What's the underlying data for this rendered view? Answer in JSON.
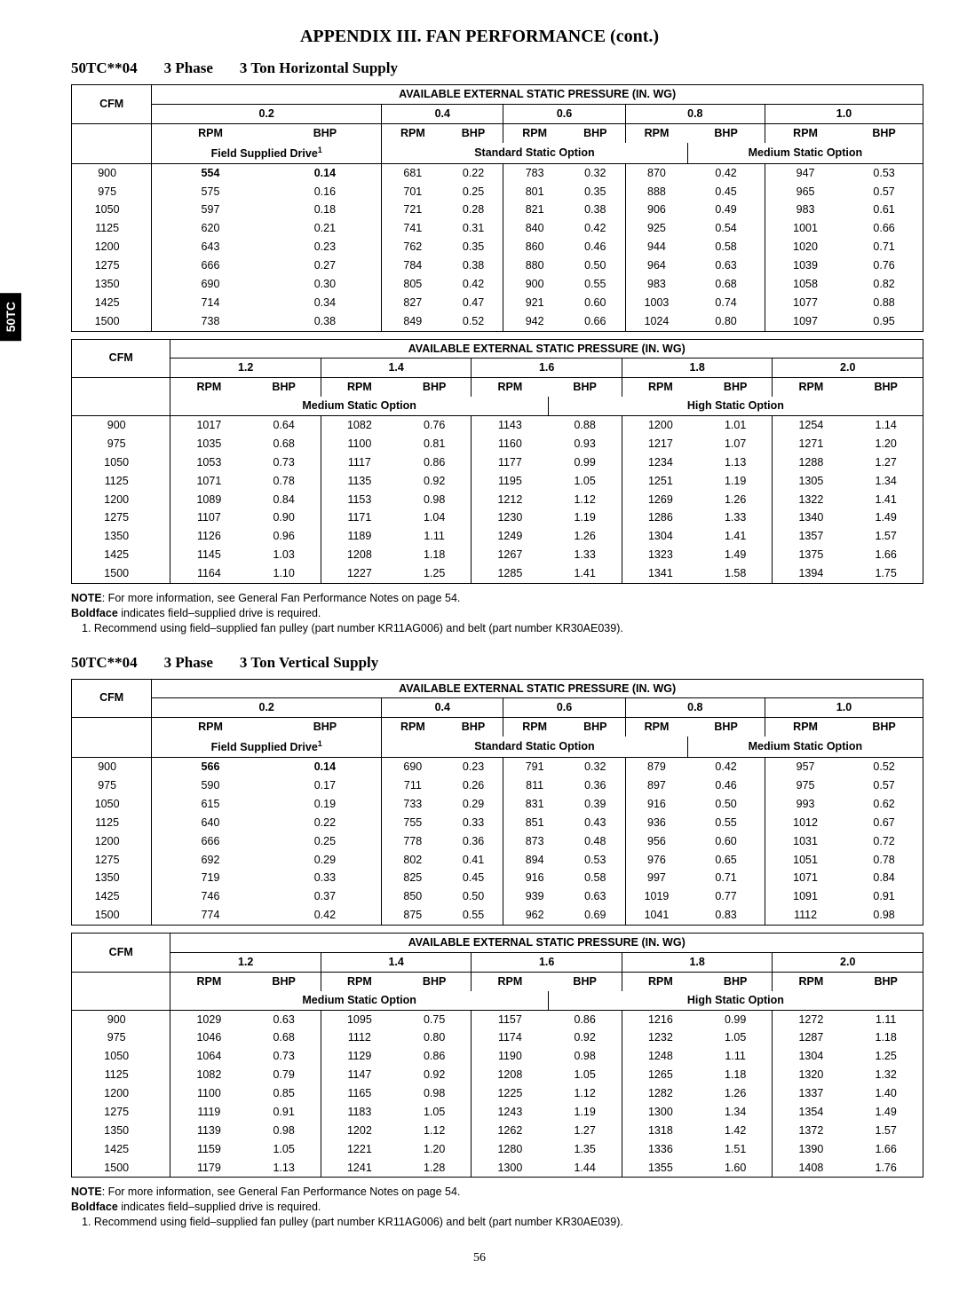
{
  "side_tab": "50TC",
  "page_title": "APPENDIX III. FAN PERFORMANCE (cont.)",
  "page_num": "56",
  "sections": [
    {
      "heading_parts": [
        "50TC**04",
        "3 Phase",
        "3 Ton Horizontal Supply"
      ],
      "table_pairs": [
        {
          "group_header": "AVAILABLE EXTERNAL STATIC PRESSURE (IN. WG)",
          "cfm_label": "CFM",
          "pressures": [
            "0.2",
            "0.4",
            "0.6",
            "0.8",
            "1.0"
          ],
          "sub_cols": [
            "RPM",
            "BHP"
          ],
          "option_labels": [
            {
              "text": "Field Supplied Drive",
              "sup": "1",
              "span": 2,
              "br": true
            },
            {
              "text": "Standard Static Option",
              "span": 6,
              "br": true
            },
            {
              "text": "Medium Static Option",
              "span": 4,
              "br": false
            }
          ],
          "rows": [
            {
              "cfm": "900",
              "bold_cols": [
                0,
                1
              ],
              "v": [
                "554",
                "0.14",
                "681",
                "0.22",
                "783",
                "0.32",
                "870",
                "0.42",
                "947",
                "0.53"
              ]
            },
            {
              "cfm": "975",
              "bold_cols": [],
              "v": [
                "575",
                "0.16",
                "701",
                "0.25",
                "801",
                "0.35",
                "888",
                "0.45",
                "965",
                "0.57"
              ]
            },
            {
              "cfm": "1050",
              "bold_cols": [],
              "v": [
                "597",
                "0.18",
                "721",
                "0.28",
                "821",
                "0.38",
                "906",
                "0.49",
                "983",
                "0.61"
              ]
            },
            {
              "cfm": "1125",
              "bold_cols": [],
              "v": [
                "620",
                "0.21",
                "741",
                "0.31",
                "840",
                "0.42",
                "925",
                "0.54",
                "1001",
                "0.66"
              ]
            },
            {
              "cfm": "1200",
              "bold_cols": [],
              "v": [
                "643",
                "0.23",
                "762",
                "0.35",
                "860",
                "0.46",
                "944",
                "0.58",
                "1020",
                "0.71"
              ]
            },
            {
              "cfm": "1275",
              "bold_cols": [],
              "v": [
                "666",
                "0.27",
                "784",
                "0.38",
                "880",
                "0.50",
                "964",
                "0.63",
                "1039",
                "0.76"
              ]
            },
            {
              "cfm": "1350",
              "bold_cols": [],
              "v": [
                "690",
                "0.30",
                "805",
                "0.42",
                "900",
                "0.55",
                "983",
                "0.68",
                "1058",
                "0.82"
              ]
            },
            {
              "cfm": "1425",
              "bold_cols": [],
              "v": [
                "714",
                "0.34",
                "827",
                "0.47",
                "921",
                "0.60",
                "1003",
                "0.74",
                "1077",
                "0.88"
              ]
            },
            {
              "cfm": "1500",
              "bold_cols": [],
              "v": [
                "738",
                "0.38",
                "849",
                "0.52",
                "942",
                "0.66",
                "1024",
                "0.80",
                "1097",
                "0.95"
              ]
            }
          ]
        },
        {
          "group_header": "AVAILABLE EXTERNAL STATIC PRESSURE (IN. WG)",
          "cfm_label": "CFM",
          "pressures": [
            "1.2",
            "1.4",
            "1.6",
            "1.8",
            "2.0"
          ],
          "sub_cols": [
            "RPM",
            "BHP"
          ],
          "option_labels": [
            {
              "text": "Medium Static Option",
              "span": 6,
              "br": true
            },
            {
              "text": "High Static Option",
              "span": 6,
              "br": false
            }
          ],
          "rows": [
            {
              "cfm": "900",
              "v": [
                "1017",
                "0.64",
                "1082",
                "0.76",
                "1143",
                "0.88",
                "1200",
                "1.01",
                "1254",
                "1.14"
              ]
            },
            {
              "cfm": "975",
              "v": [
                "1035",
                "0.68",
                "1100",
                "0.81",
                "1160",
                "0.93",
                "1217",
                "1.07",
                "1271",
                "1.20"
              ]
            },
            {
              "cfm": "1050",
              "v": [
                "1053",
                "0.73",
                "1117",
                "0.86",
                "1177",
                "0.99",
                "1234",
                "1.13",
                "1288",
                "1.27"
              ]
            },
            {
              "cfm": "1125",
              "v": [
                "1071",
                "0.78",
                "1135",
                "0.92",
                "1195",
                "1.05",
                "1251",
                "1.19",
                "1305",
                "1.34"
              ]
            },
            {
              "cfm": "1200",
              "v": [
                "1089",
                "0.84",
                "1153",
                "0.98",
                "1212",
                "1.12",
                "1269",
                "1.26",
                "1322",
                "1.41"
              ]
            },
            {
              "cfm": "1275",
              "v": [
                "1107",
                "0.90",
                "1171",
                "1.04",
                "1230",
                "1.19",
                "1286",
                "1.33",
                "1340",
                "1.49"
              ]
            },
            {
              "cfm": "1350",
              "v": [
                "1126",
                "0.96",
                "1189",
                "1.11",
                "1249",
                "1.26",
                "1304",
                "1.41",
                "1357",
                "1.57"
              ]
            },
            {
              "cfm": "1425",
              "v": [
                "1145",
                "1.03",
                "1208",
                "1.18",
                "1267",
                "1.33",
                "1323",
                "1.49",
                "1375",
                "1.66"
              ]
            },
            {
              "cfm": "1500",
              "v": [
                "1164",
                "1.10",
                "1227",
                "1.25",
                "1285",
                "1.41",
                "1341",
                "1.58",
                "1394",
                "1.75"
              ]
            }
          ]
        }
      ],
      "notes": [
        {
          "bold_prefix": "NOTE",
          "text": ": For more information, see General Fan Performance Notes on page 54."
        },
        {
          "bold_prefix": "Boldface",
          "text": " indicates field–supplied drive is required."
        },
        {
          "indent": true,
          "text": "1. Recommend using field–supplied fan pulley (part number KR11AG006) and belt (part number KR30AE039)."
        }
      ]
    },
    {
      "heading_parts": [
        "50TC**04",
        "3 Phase",
        "3 Ton Vertical Supply"
      ],
      "table_pairs": [
        {
          "group_header": "AVAILABLE EXTERNAL STATIC PRESSURE (IN. WG)",
          "cfm_label": "CFM",
          "pressures": [
            "0.2",
            "0.4",
            "0.6",
            "0.8",
            "1.0"
          ],
          "sub_cols": [
            "RPM",
            "BHP"
          ],
          "option_labels": [
            {
              "text": "Field Supplied Drive",
              "sup": "1",
              "span": 2,
              "br": true
            },
            {
              "text": "Standard Static Option",
              "span": 6,
              "br": true
            },
            {
              "text": "Medium Static Option",
              "span": 4,
              "br": false
            }
          ],
          "rows": [
            {
              "cfm": "900",
              "bold_cols": [
                0,
                1
              ],
              "v": [
                "566",
                "0.14",
                "690",
                "0.23",
                "791",
                "0.32",
                "879",
                "0.42",
                "957",
                "0.52"
              ]
            },
            {
              "cfm": "975",
              "v": [
                "590",
                "0.17",
                "711",
                "0.26",
                "811",
                "0.36",
                "897",
                "0.46",
                "975",
                "0.57"
              ]
            },
            {
              "cfm": "1050",
              "v": [
                "615",
                "0.19",
                "733",
                "0.29",
                "831",
                "0.39",
                "916",
                "0.50",
                "993",
                "0.62"
              ]
            },
            {
              "cfm": "1125",
              "v": [
                "640",
                "0.22",
                "755",
                "0.33",
                "851",
                "0.43",
                "936",
                "0.55",
                "1012",
                "0.67"
              ]
            },
            {
              "cfm": "1200",
              "v": [
                "666",
                "0.25",
                "778",
                "0.36",
                "873",
                "0.48",
                "956",
                "0.60",
                "1031",
                "0.72"
              ]
            },
            {
              "cfm": "1275",
              "v": [
                "692",
                "0.29",
                "802",
                "0.41",
                "894",
                "0.53",
                "976",
                "0.65",
                "1051",
                "0.78"
              ]
            },
            {
              "cfm": "1350",
              "v": [
                "719",
                "0.33",
                "825",
                "0.45",
                "916",
                "0.58",
                "997",
                "0.71",
                "1071",
                "0.84"
              ]
            },
            {
              "cfm": "1425",
              "v": [
                "746",
                "0.37",
                "850",
                "0.50",
                "939",
                "0.63",
                "1019",
                "0.77",
                "1091",
                "0.91"
              ]
            },
            {
              "cfm": "1500",
              "v": [
                "774",
                "0.42",
                "875",
                "0.55",
                "962",
                "0.69",
                "1041",
                "0.83",
                "1112",
                "0.98"
              ]
            }
          ]
        },
        {
          "group_header": "AVAILABLE EXTERNAL STATIC PRESSURE (IN. WG)",
          "cfm_label": "CFM",
          "pressures": [
            "1.2",
            "1.4",
            "1.6",
            "1.8",
            "2.0"
          ],
          "sub_cols": [
            "RPM",
            "BHP"
          ],
          "option_labels": [
            {
              "text": "Medium Static Option",
              "span": 6,
              "br": true
            },
            {
              "text": "High Static Option",
              "span": 6,
              "br": false
            }
          ],
          "rows": [
            {
              "cfm": "900",
              "v": [
                "1029",
                "0.63",
                "1095",
                "0.75",
                "1157",
                "0.86",
                "1216",
                "0.99",
                "1272",
                "1.11"
              ]
            },
            {
              "cfm": "975",
              "v": [
                "1046",
                "0.68",
                "1112",
                "0.80",
                "1174",
                "0.92",
                "1232",
                "1.05",
                "1287",
                "1.18"
              ]
            },
            {
              "cfm": "1050",
              "v": [
                "1064",
                "0.73",
                "1129",
                "0.86",
                "1190",
                "0.98",
                "1248",
                "1.11",
                "1304",
                "1.25"
              ]
            },
            {
              "cfm": "1125",
              "v": [
                "1082",
                "0.79",
                "1147",
                "0.92",
                "1208",
                "1.05",
                "1265",
                "1.18",
                "1320",
                "1.32"
              ]
            },
            {
              "cfm": "1200",
              "v": [
                "1100",
                "0.85",
                "1165",
                "0.98",
                "1225",
                "1.12",
                "1282",
                "1.26",
                "1337",
                "1.40"
              ]
            },
            {
              "cfm": "1275",
              "v": [
                "1119",
                "0.91",
                "1183",
                "1.05",
                "1243",
                "1.19",
                "1300",
                "1.34",
                "1354",
                "1.49"
              ]
            },
            {
              "cfm": "1350",
              "v": [
                "1139",
                "0.98",
                "1202",
                "1.12",
                "1262",
                "1.27",
                "1318",
                "1.42",
                "1372",
                "1.57"
              ]
            },
            {
              "cfm": "1425",
              "v": [
                "1159",
                "1.05",
                "1221",
                "1.20",
                "1280",
                "1.35",
                "1336",
                "1.51",
                "1390",
                "1.66"
              ]
            },
            {
              "cfm": "1500",
              "v": [
                "1179",
                "1.13",
                "1241",
                "1.28",
                "1300",
                "1.44",
                "1355",
                "1.60",
                "1408",
                "1.76"
              ]
            }
          ]
        }
      ],
      "notes": [
        {
          "bold_prefix": "NOTE",
          "text": ": For more information, see General Fan Performance Notes on page 54."
        },
        {
          "bold_prefix": "Boldface",
          "text": " indicates field–supplied drive is required."
        },
        {
          "indent": true,
          "text": "1. Recommend using field–supplied fan pulley (part number KR11AG006) and belt (part number KR30AE039)."
        }
      ]
    }
  ]
}
